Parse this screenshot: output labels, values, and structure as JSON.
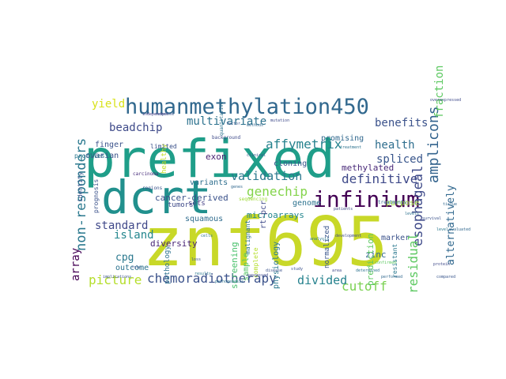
{
  "words": [
    {
      "text": "znf695",
      "color": "#c8d828"
    },
    {
      "text": "prefixed",
      "color": "#1f9e89"
    },
    {
      "text": "dcrt",
      "color": "#21908d"
    },
    {
      "text": "humanmethylation450",
      "color": "#31688e"
    },
    {
      "text": "infinium",
      "color": "#440154"
    },
    {
      "text": "chemoradiotherapy",
      "color": "#3b528b"
    },
    {
      "text": "amplicons",
      "color": "#33638d"
    },
    {
      "text": "non-responders",
      "color": "#2a788e"
    },
    {
      "text": "esophageal",
      "color": "#3e4a89"
    },
    {
      "text": "residual",
      "color": "#5ec962"
    },
    {
      "text": "genechip",
      "color": "#84d44b"
    },
    {
      "text": "affymetrix",
      "color": "#26828e"
    },
    {
      "text": "validation",
      "color": "#2a788e"
    },
    {
      "text": "multivariate",
      "color": "#2c728e"
    },
    {
      "text": "fraction",
      "color": "#5ec962"
    },
    {
      "text": "alternatively",
      "color": "#31688e"
    },
    {
      "text": "benefits",
      "color": "#3b528b"
    },
    {
      "text": "health",
      "color": "#2e6e8e"
    },
    {
      "text": "spliced",
      "color": "#39568c"
    },
    {
      "text": "definitive",
      "color": "#3e4989"
    },
    {
      "text": "cutoff",
      "color": "#7ad151"
    },
    {
      "text": "picture",
      "color": "#b5de2b"
    },
    {
      "text": "divided",
      "color": "#26828e"
    },
    {
      "text": "island",
      "color": "#24878e"
    },
    {
      "text": "standard",
      "color": "#3f4889"
    },
    {
      "text": "beadchip",
      "color": "#3e4a89"
    },
    {
      "text": "yield",
      "color": "#d8e219"
    },
    {
      "text": "array",
      "color": "#440154"
    },
    {
      "text": "cpg",
      "color": "#2a788e"
    },
    {
      "text": "methylated",
      "color": "#482878"
    },
    {
      "text": "microarrays",
      "color": "#24868e"
    },
    {
      "text": "cancer-derived",
      "color": "#3b528b"
    },
    {
      "text": "diversity",
      "color": "#482475"
    },
    {
      "text": "squamous",
      "color": "#2f6c8e"
    },
    {
      "text": "screening",
      "color": "#4ac16d"
    },
    {
      "text": "physiology",
      "color": "#2a788e"
    },
    {
      "text": "sample",
      "color": "#56c667"
    },
    {
      "text": "zinc",
      "color": "#31688e"
    },
    {
      "text": "prediction",
      "color": "#5ec962"
    },
    {
      "text": "marker",
      "color": "#3b528b"
    },
    {
      "text": "purpose",
      "color": "#9bd93c"
    },
    {
      "text": "genome",
      "color": "#2c728e"
    },
    {
      "text": "cloning",
      "color": "#39568c"
    },
    {
      "text": "promising",
      "color": "#31688e"
    },
    {
      "text": "exon",
      "color": "#481f70"
    },
    {
      "text": "variants",
      "color": "#2e6e8e"
    },
    {
      "text": "outcome",
      "color": "#2c728e"
    },
    {
      "text": "finger",
      "color": "#3b528b"
    },
    {
      "text": "ovarian",
      "color": "#3b528b"
    },
    {
      "text": "healthy",
      "color": "#c2df23"
    },
    {
      "text": "pathology",
      "color": "#2c728e"
    },
    {
      "text": "tumors",
      "color": "#3e4a89"
    },
    {
      "text": "sets",
      "color": "#433e85"
    },
    {
      "text": "rt-pcr",
      "color": "#3e4989"
    },
    {
      "text": "normalized",
      "color": "#39568c"
    },
    {
      "text": "limited",
      "color": "#3b528b"
    },
    {
      "text": "identity",
      "color": "#39568c"
    },
    {
      "text": "prognosis",
      "color": "#3b528b"
    },
    {
      "text": "profiles",
      "color": "#2a788e"
    },
    {
      "text": "malignant",
      "color": "#2c728e"
    },
    {
      "text": "complete",
      "color": "#b5de2b"
    },
    {
      "text": "resistant",
      "color": "#2a788e"
    },
    {
      "text": "regions",
      "color": "#3b528b"
    },
    {
      "text": "carcinoma",
      "color": "#472c7a"
    },
    {
      "text": "background",
      "color": "#3e4a89"
    },
    {
      "text": "quantitative",
      "color": "#2c728e"
    },
    {
      "text": "sequencing",
      "color": "#a0da39"
    },
    {
      "text": "treatments",
      "color": "#31688e"
    },
    {
      "text": "overexpressed",
      "color": "#3e4989"
    },
    {
      "text": "independent",
      "color": "#433e85"
    },
    {
      "text": "confirmed",
      "color": "#5ec962"
    },
    {
      "text": "performed",
      "color": "#31688e"
    },
    {
      "text": "implications",
      "color": "#3b528b"
    },
    {
      "text": "pathogenesis",
      "color": "#2c728e"
    },
    {
      "text": "expressed",
      "color": "#3e4a89"
    },
    {
      "text": "compared",
      "color": "#39568c"
    },
    {
      "text": "determined",
      "color": "#2c728e"
    },
    {
      "text": "development",
      "color": "#3e4a89"
    },
    {
      "text": "disease",
      "color": "#3b528b"
    },
    {
      "text": "analysis",
      "color": "#2a788e"
    },
    {
      "text": "survival",
      "color": "#3b528b"
    },
    {
      "text": "evaluated",
      "color": "#31688e"
    },
    {
      "text": "protein",
      "color": "#3e4989"
    },
    {
      "text": "factor",
      "color": "#39568c"
    },
    {
      "text": "genes",
      "color": "#31688e"
    },
    {
      "text": "level",
      "color": "#2a788e"
    },
    {
      "text": "role",
      "color": "#3b528b"
    },
    {
      "text": "area",
      "color": "#3e4a89"
    },
    {
      "text": "cells",
      "color": "#2c728e"
    },
    {
      "text": "loss",
      "color": "#3b528b"
    },
    {
      "text": "tissue",
      "color": "#31688e"
    },
    {
      "text": "patients",
      "color": "#3e4a89"
    },
    {
      "text": "levels",
      "color": "#2c728e"
    },
    {
      "text": "study",
      "color": "#3b528b"
    },
    {
      "text": "results",
      "color": "#2a788e"
    },
    {
      "text": "methods",
      "color": "#31688e"
    },
    {
      "text": "mutation",
      "color": "#3e4989"
    },
    {
      "text": "response",
      "color": "#3b528b"
    },
    {
      "text": "treatment",
      "color": "#2c728e"
    },
    {
      "text": "clinical",
      "color": "#39568c"
    }
  ]
}
